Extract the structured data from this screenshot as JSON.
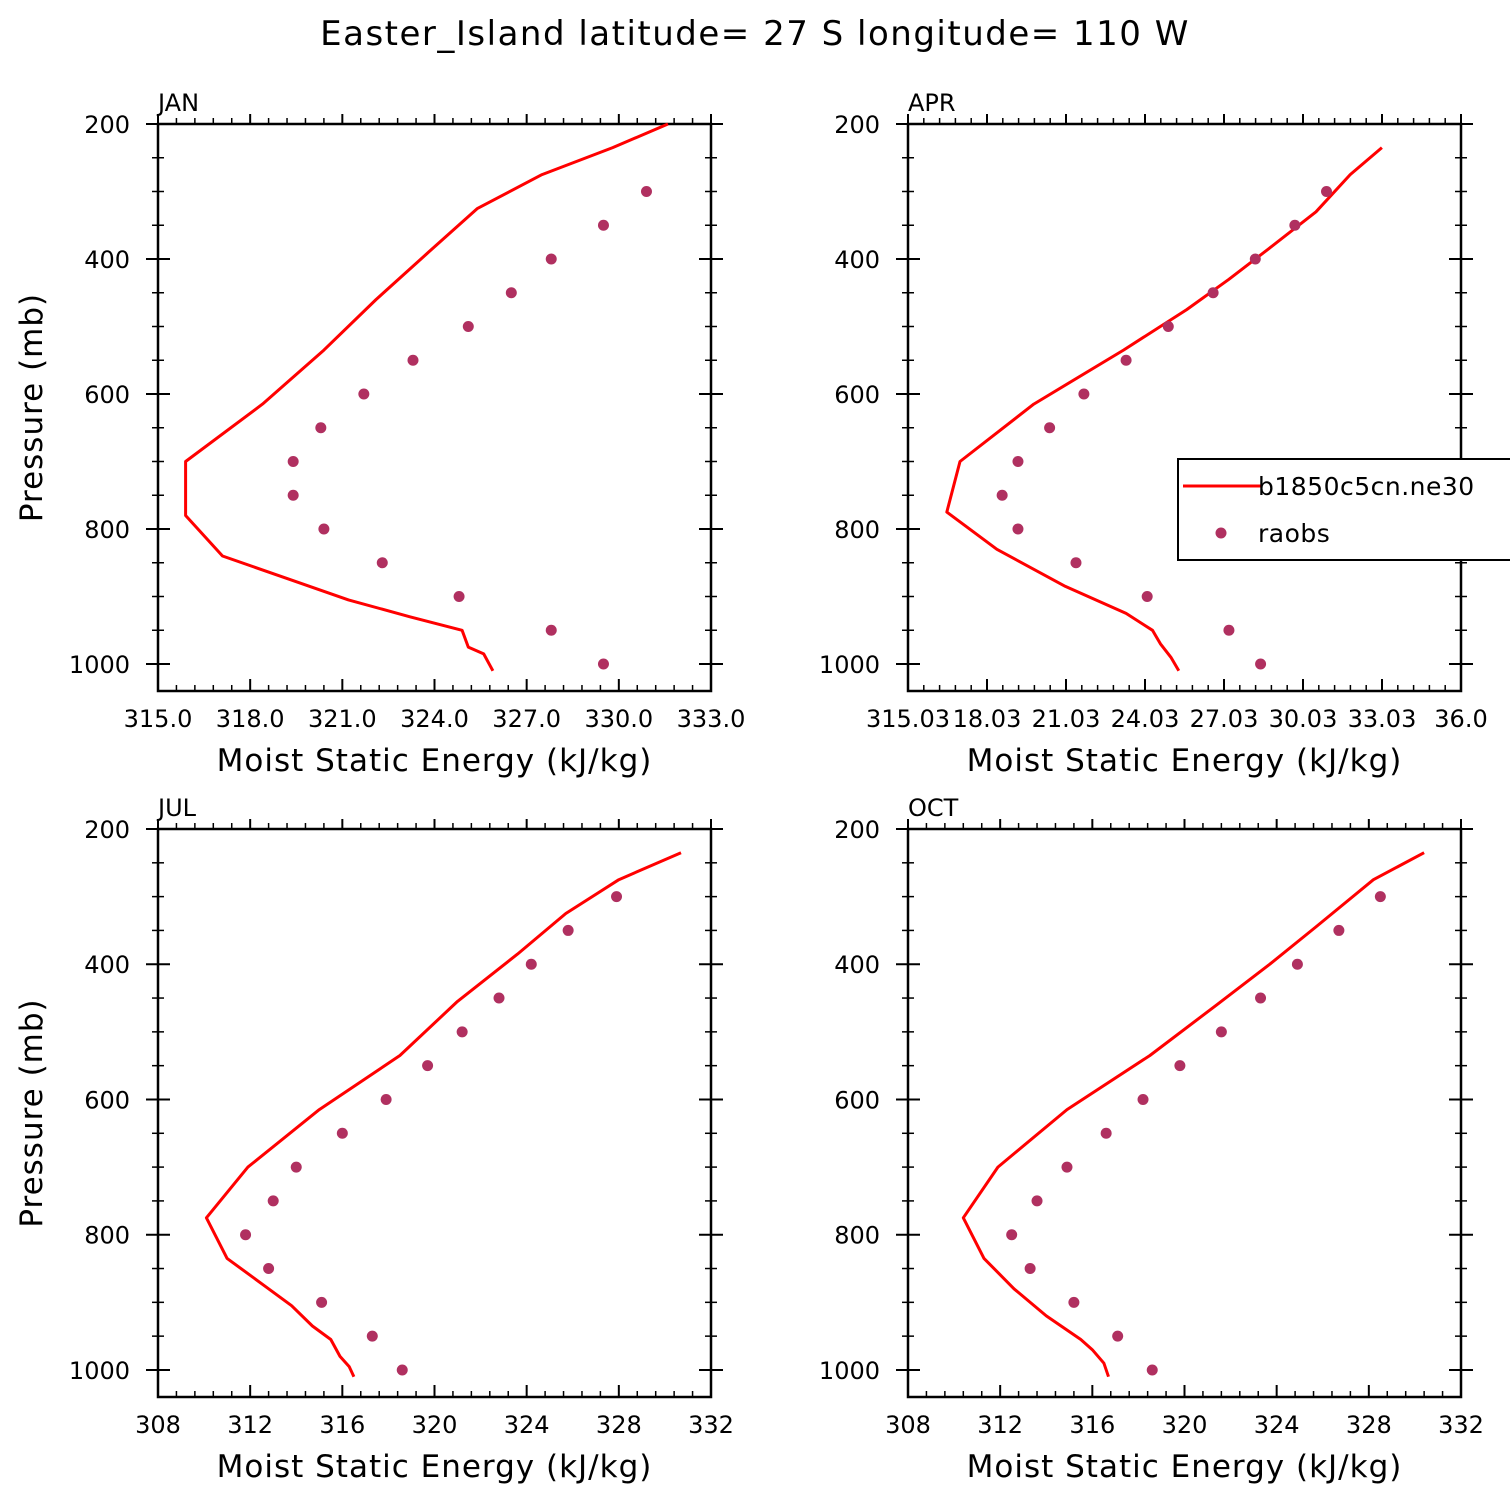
{
  "figure_title": "Easter_Island  latitude= 27 S longitude= 110 W",
  "colors": {
    "model": "#ff0000",
    "obs": "#b03060"
  },
  "legend": {
    "model_label": "b1850c5cn.ne30",
    "obs_label": "raobs"
  },
  "chart_data": [
    {
      "type": "line",
      "panel": "JAN",
      "xlabel": "Moist Static Energy (kJ/kg)",
      "ylabel": "Pressure (mb)",
      "xlim": [
        315.0,
        333.0
      ],
      "xticks": [
        "315.0",
        "318.0",
        "321.0",
        "324.0",
        "327.0",
        "330.0",
        "333.0"
      ],
      "ylim": [
        200,
        1000
      ],
      "y_inverted": true,
      "yticks": [
        "200",
        "400",
        "600",
        "800",
        "1000"
      ],
      "series": [
        {
          "name": "b1850c5cn.ne30",
          "kind": "line",
          "x": [
            325.9,
            325.6,
            325.1,
            324.9,
            323.2,
            321.2,
            319.3,
            317.1,
            315.9,
            315.9,
            318.4,
            320.4,
            322.1,
            323.8,
            325.4,
            327.5,
            329.8,
            331.6
          ],
          "y": [
            1010,
            985,
            975,
            950,
            930,
            905,
            875,
            840,
            780,
            700,
            615,
            535,
            460,
            390,
            325,
            275,
            235,
            200
          ]
        },
        {
          "name": "raobs",
          "kind": "points",
          "x": [
            329.5,
            327.8,
            324.8,
            322.3,
            320.4,
            319.4,
            319.4,
            320.3,
            321.7,
            323.3,
            325.1,
            326.5,
            327.8,
            329.5,
            330.9
          ],
          "y": [
            1000,
            950,
            900,
            850,
            800,
            750,
            700,
            650,
            600,
            550,
            500,
            450,
            400,
            350,
            300
          ]
        }
      ]
    },
    {
      "type": "line",
      "panel": "APR",
      "xlabel": "Moist Static Energy (kJ/kg)",
      "ylabel": "",
      "xlim": [
        315.03,
        336.0
      ],
      "xticks": [
        "315.03",
        "18.03",
        "21.03",
        "24.03",
        "27.03",
        "30.03",
        "33.03",
        "36.0"
      ],
      "ylim": [
        200,
        1000
      ],
      "y_inverted": true,
      "yticks": [
        "200",
        "400",
        "600",
        "800",
        "1000"
      ],
      "series": [
        {
          "name": "b1850c5cn.ne30",
          "kind": "line",
          "x": [
            325.3,
            325.0,
            324.6,
            324.3,
            323.3,
            321.0,
            318.4,
            316.5,
            317.0,
            319.8,
            323.2,
            325.6,
            327.2,
            328.7,
            330.5,
            331.8,
            333.0
          ],
          "y": [
            1010,
            990,
            970,
            950,
            925,
            885,
            830,
            775,
            700,
            615,
            535,
            475,
            430,
            385,
            330,
            275,
            235
          ]
        },
        {
          "name": "raobs",
          "kind": "points",
          "x": [
            328.4,
            327.2,
            324.1,
            321.4,
            319.2,
            318.6,
            319.2,
            320.4,
            321.7,
            323.3,
            324.9,
            326.6,
            328.2,
            329.7,
            330.9
          ],
          "y": [
            1000,
            950,
            900,
            850,
            800,
            750,
            700,
            650,
            600,
            550,
            500,
            450,
            400,
            350,
            300
          ]
        }
      ]
    },
    {
      "type": "line",
      "panel": "JUL",
      "xlabel": "Moist Static Energy (kJ/kg)",
      "ylabel": "Pressure (mb)",
      "xlim": [
        308,
        332
      ],
      "xticks": [
        "308",
        "312",
        "316",
        "320",
        "324",
        "328",
        "332"
      ],
      "ylim": [
        200,
        1000
      ],
      "y_inverted": true,
      "yticks": [
        "200",
        "400",
        "600",
        "800",
        "1000"
      ],
      "series": [
        {
          "name": "b1850c5cn.ne30",
          "kind": "line",
          "x": [
            316.5,
            316.3,
            315.9,
            315.5,
            314.7,
            313.8,
            312.6,
            311.0,
            310.1,
            311.9,
            315.0,
            318.5,
            321.0,
            323.6,
            325.7,
            328.0,
            330.7
          ],
          "y": [
            1010,
            995,
            980,
            955,
            935,
            905,
            875,
            835,
            775,
            700,
            615,
            535,
            455,
            385,
            325,
            275,
            235
          ]
        },
        {
          "name": "raobs",
          "kind": "points",
          "x": [
            318.6,
            317.3,
            315.1,
            312.8,
            311.8,
            313.0,
            314.0,
            316.0,
            317.9,
            319.7,
            321.2,
            322.8,
            324.2,
            325.8,
            327.9
          ],
          "y": [
            1000,
            950,
            900,
            850,
            800,
            750,
            700,
            650,
            600,
            550,
            500,
            450,
            400,
            350,
            300
          ]
        }
      ]
    },
    {
      "type": "line",
      "panel": "OCT",
      "xlabel": "Moist Static Energy (kJ/kg)",
      "ylabel": "",
      "xlim": [
        308,
        332
      ],
      "xticks": [
        "308",
        "312",
        "316",
        "320",
        "324",
        "328",
        "332"
      ],
      "ylim": [
        200,
        1000
      ],
      "y_inverted": true,
      "yticks": [
        "200",
        "400",
        "600",
        "800",
        "1000"
      ],
      "series": [
        {
          "name": "b1850c5cn.ne30",
          "kind": "line",
          "x": [
            316.7,
            316.5,
            316.0,
            315.5,
            314.0,
            312.6,
            311.3,
            310.4,
            311.9,
            314.9,
            318.5,
            321.4,
            323.7,
            325.7,
            328.2,
            330.4
          ],
          "y": [
            1010,
            990,
            970,
            955,
            920,
            880,
            835,
            775,
            700,
            615,
            535,
            460,
            400,
            345,
            275,
            235
          ]
        },
        {
          "name": "raobs",
          "kind": "points",
          "x": [
            318.6,
            317.1,
            315.2,
            313.3,
            312.5,
            313.6,
            314.9,
            316.6,
            318.2,
            319.8,
            321.6,
            323.3,
            324.9,
            326.7,
            328.5
          ],
          "y": [
            1000,
            950,
            900,
            850,
            800,
            750,
            700,
            650,
            600,
            550,
            500,
            450,
            400,
            350,
            300
          ]
        }
      ]
    }
  ]
}
